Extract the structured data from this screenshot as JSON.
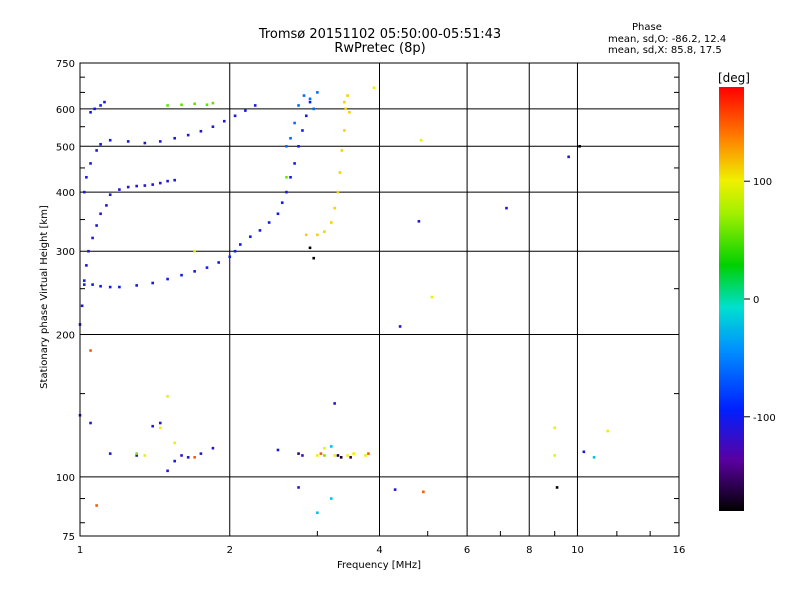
{
  "header": {
    "title_line1": "Tromsø 20151102 05:50:00-05:51:43",
    "title_line2": "RwPretec (8p)"
  },
  "phase_info": {
    "heading": "Phase",
    "line1": "mean, sd,O: -86.2, 12.4",
    "line2": "mean, sd,X:  85.8, 17.5"
  },
  "chart_data": {
    "type": "scatter",
    "xlabel": "Frequency [MHz]",
    "ylabel": "Stationary phase Virtual Height [km]",
    "xscale": "log",
    "yscale": "log",
    "xlim": [
      1,
      16
    ],
    "ylim": [
      75,
      750
    ],
    "x_ticks": [
      1,
      2,
      4,
      6,
      8,
      10,
      16
    ],
    "y_ticks": [
      75,
      100,
      200,
      300,
      400,
      500,
      600,
      750
    ],
    "grid": true,
    "colorbar": {
      "label": "[deg]",
      "range": [
        -180,
        180
      ],
      "ticks": [
        100,
        0,
        -100
      ]
    },
    "series": [
      {
        "points": [
          [
            1.0,
            210
          ],
          [
            1.01,
            230
          ],
          [
            1.02,
            255
          ],
          [
            1.03,
            280
          ],
          [
            1.04,
            300
          ],
          [
            1.06,
            320
          ],
          [
            1.08,
            340
          ],
          [
            1.1,
            360
          ],
          [
            1.13,
            375
          ],
          [
            1.15,
            395
          ],
          [
            1.2,
            405
          ],
          [
            1.25,
            410
          ],
          [
            1.3,
            412
          ],
          [
            1.35,
            413
          ],
          [
            1.4,
            415
          ],
          [
            1.45,
            418
          ],
          [
            1.5,
            422
          ],
          [
            1.55,
            424
          ]
        ],
        "phase": -110
      },
      {
        "points": [
          [
            1.02,
            260
          ],
          [
            1.06,
            255
          ],
          [
            1.1,
            253
          ],
          [
            1.15,
            252
          ],
          [
            1.2,
            252
          ],
          [
            1.3,
            254
          ],
          [
            1.4,
            257
          ],
          [
            1.5,
            262
          ],
          [
            1.6,
            267
          ],
          [
            1.7,
            272
          ],
          [
            1.8,
            277
          ],
          [
            1.9,
            284
          ],
          [
            2.0,
            292
          ],
          [
            2.05,
            300
          ],
          [
            2.1,
            310
          ],
          [
            2.2,
            322
          ],
          [
            2.3,
            332
          ],
          [
            2.4,
            345
          ],
          [
            2.5,
            360
          ],
          [
            2.55,
            380
          ],
          [
            2.6,
            400
          ],
          [
            2.65,
            430
          ],
          [
            2.7,
            460
          ],
          [
            2.75,
            500
          ],
          [
            2.8,
            540
          ],
          [
            2.85,
            580
          ],
          [
            2.9,
            620
          ]
        ],
        "phase": -100
      },
      {
        "points": [
          [
            1.02,
            400
          ],
          [
            1.03,
            430
          ],
          [
            1.05,
            460
          ],
          [
            1.08,
            490
          ],
          [
            1.1,
            505
          ],
          [
            1.15,
            515
          ],
          [
            1.25,
            512
          ],
          [
            1.35,
            508
          ],
          [
            1.45,
            512
          ],
          [
            1.55,
            520
          ],
          [
            1.65,
            528
          ],
          [
            1.75,
            538
          ],
          [
            1.85,
            550
          ],
          [
            1.95,
            565
          ],
          [
            2.05,
            580
          ],
          [
            2.15,
            595
          ],
          [
            2.25,
            610
          ]
        ],
        "phase": -105
      },
      {
        "points": [
          [
            1.05,
            590
          ],
          [
            1.07,
            600
          ],
          [
            1.1,
            610
          ],
          [
            1.12,
            620
          ]
        ],
        "phase": -100
      },
      {
        "points": [
          [
            2.65,
            520
          ],
          [
            2.7,
            560
          ],
          [
            2.75,
            610
          ],
          [
            2.82,
            640
          ],
          [
            2.9,
            630
          ],
          [
            2.95,
            600
          ],
          [
            3.0,
            650
          ],
          [
            2.6,
            500
          ]
        ],
        "phase": -60
      },
      {
        "points": [
          [
            2.85,
            325
          ],
          [
            3.0,
            325
          ],
          [
            3.1,
            330
          ],
          [
            3.2,
            345
          ],
          [
            3.25,
            370
          ],
          [
            3.3,
            400
          ],
          [
            3.33,
            440
          ],
          [
            3.36,
            490
          ],
          [
            3.4,
            540
          ],
          [
            3.42,
            600
          ],
          [
            3.45,
            640
          ],
          [
            3.48,
            590
          ],
          [
            3.4,
            620
          ]
        ],
        "phase": 110
      },
      {
        "points": [
          [
            1.5,
            610
          ],
          [
            1.6,
            612
          ],
          [
            1.7,
            615
          ],
          [
            1.8,
            612
          ],
          [
            1.85,
            617
          ]
        ],
        "phase": 55
      },
      {
        "points": [
          [
            1.0,
            135
          ],
          [
            1.05,
            130
          ],
          [
            1.15,
            112
          ],
          [
            1.3,
            111
          ],
          [
            1.4,
            128
          ],
          [
            1.45,
            130
          ],
          [
            1.5,
            103
          ],
          [
            1.55,
            108
          ],
          [
            1.6,
            111
          ],
          [
            1.65,
            110
          ],
          [
            1.75,
            112
          ],
          [
            1.85,
            115
          ],
          [
            2.5,
            114
          ],
          [
            2.75,
            95
          ],
          [
            2.8,
            111
          ],
          [
            3.25,
            143
          ],
          [
            4.3,
            94
          ],
          [
            4.4,
            208
          ],
          [
            4.8,
            347
          ],
          [
            7.2,
            370
          ],
          [
            9.6,
            475
          ],
          [
            10.3,
            113
          ]
        ],
        "phase": -110
      },
      {
        "points": [
          [
            1.35,
            111
          ],
          [
            1.45,
            127
          ],
          [
            1.5,
            148
          ],
          [
            1.55,
            118
          ],
          [
            1.7,
            300
          ],
          [
            3.0,
            111
          ],
          [
            3.1,
            115
          ],
          [
            3.25,
            111
          ],
          [
            3.45,
            111
          ],
          [
            3.55,
            112
          ],
          [
            3.75,
            111
          ],
          [
            4.85,
            515
          ],
          [
            5.1,
            240
          ],
          [
            9.0,
            111
          ],
          [
            9.0,
            127
          ],
          [
            11.5,
            125
          ],
          [
            3.9,
            665
          ]
        ],
        "phase": 100
      },
      {
        "points": [
          [
            1.05,
            185
          ],
          [
            1.7,
            110
          ],
          [
            4.9,
            93
          ],
          [
            3.05,
            112
          ],
          [
            3.8,
            112
          ],
          [
            1.08,
            87
          ]
        ],
        "phase": 150
      },
      {
        "points": [
          [
            1.3,
            112
          ],
          [
            3.1,
            111
          ],
          [
            2.6,
            430
          ]
        ],
        "phase": 60
      },
      {
        "points": [
          [
            3.2,
            116
          ],
          [
            10.8,
            110
          ],
          [
            3.0,
            84
          ],
          [
            3.2,
            90
          ]
        ],
        "phase": -20
      },
      {
        "points": [
          [
            2.75,
            112
          ],
          [
            3.5,
            110
          ]
        ],
        "phase": -150
      },
      {
        "points": [
          [
            3.3,
            111
          ],
          [
            3.35,
            110
          ]
        ],
        "phase": -170
      },
      {
        "points": [
          [
            2.9,
            305
          ],
          [
            2.95,
            290
          ],
          [
            9.1,
            95
          ],
          [
            10.1,
            500
          ]
        ],
        "phase": -180
      }
    ]
  },
  "colors": {
    "frame": "#000000",
    "background": "#ffffff"
  }
}
